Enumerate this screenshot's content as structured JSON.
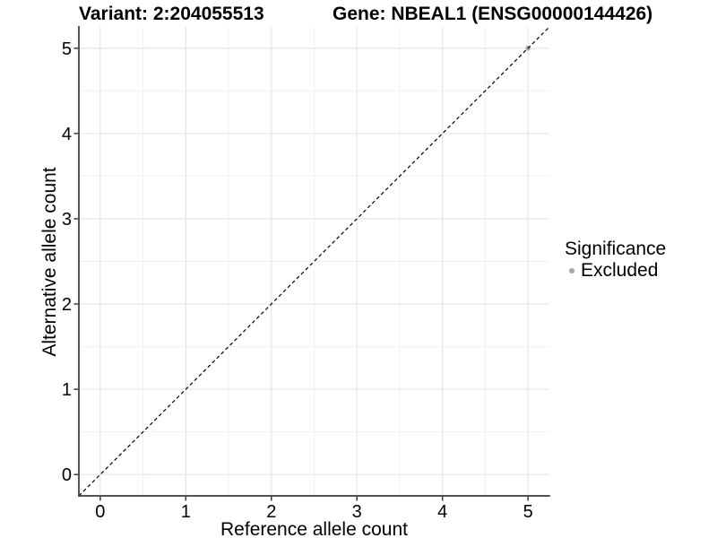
{
  "titles": {
    "variant": "Variant: 2:204055513",
    "gene": "Gene: NBEAL1 (ENSG00000144426)"
  },
  "chart_data": {
    "type": "scatter",
    "xlabel": "Reference allele count",
    "ylabel": "Alternative allele count",
    "x_ticks": [
      0,
      1,
      2,
      3,
      4,
      5
    ],
    "y_ticks": [
      0,
      1,
      2,
      3,
      4,
      5
    ],
    "x_minor_ticks": [
      0.5,
      1.5,
      2.5,
      3.5,
      4.5
    ],
    "y_minor_ticks": [
      0.5,
      1.5,
      2.5,
      3.5,
      4.5
    ],
    "xlim": [
      -0.25,
      5.25
    ],
    "ylim": [
      -0.25,
      5.25
    ],
    "grid": "major+minor",
    "reference_line": {
      "type": "identity",
      "equation": "y = x",
      "style": "dashed",
      "color": "#000000"
    },
    "series": [
      {
        "name": "Excluded",
        "color": "#a8a8a8",
        "points": [
          {
            "x": 5,
            "y": 5
          }
        ]
      }
    ],
    "legend": {
      "title": "Significance",
      "position": "right",
      "items": [
        {
          "label": "Excluded",
          "color": "#a8a8a8"
        }
      ]
    },
    "colors": {
      "background": "#ffffff",
      "grid_major": "#e3e3e3",
      "grid_minor": "#f0f0f0",
      "axis": "#3a3a3a",
      "text": "#000000"
    }
  }
}
